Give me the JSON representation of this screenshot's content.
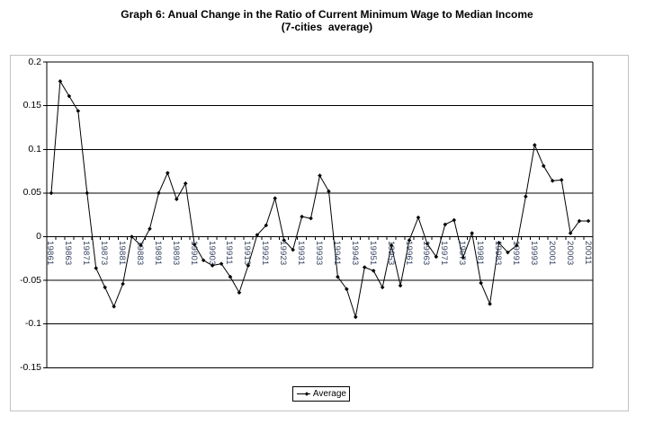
{
  "colors": {
    "line": "#000000",
    "marker": "#000000",
    "grid": "#000000",
    "axis_text": "#000000",
    "x_label_text": "#33415f",
    "frame": "#c2c2c2"
  },
  "legend": {
    "position": "bottom-center"
  },
  "chart_data": {
    "type": "line",
    "title": "Graph 6: Anual Change in the Ratio of Current Minimum Wage to Median Income",
    "subtitle": "(7-cities  average)",
    "x": [
      "19861",
      "19862",
      "19863",
      "19864",
      "19871",
      "19872",
      "19873",
      "19874",
      "19881",
      "19882",
      "19883",
      "19884",
      "19891",
      "19892",
      "19893",
      "19894",
      "19901",
      "19902",
      "19903",
      "19904",
      "19911",
      "19912",
      "19913",
      "19914",
      "19921",
      "19922",
      "19923",
      "19924",
      "19931",
      "19932",
      "19933",
      "19934",
      "19941",
      "19942",
      "19943",
      "19944",
      "19951",
      "19952",
      "19953",
      "19954",
      "19961",
      "19962",
      "19963",
      "19964",
      "19971",
      "19972",
      "19973",
      "19974",
      "19981",
      "19982",
      "19983",
      "19984",
      "19991",
      "19992",
      "19993",
      "19994",
      "20001",
      "20002",
      "20003",
      "20004",
      "20011"
    ],
    "x_tick_labels": [
      "19861",
      "19863",
      "19871",
      "19873",
      "19881",
      "19883",
      "19891",
      "19893",
      "19901",
      "19903",
      "19911",
      "19913",
      "19921",
      "19923",
      "19931",
      "19933",
      "19941",
      "19943",
      "19951",
      "19953",
      "19961",
      "19963",
      "19971",
      "19973",
      "19981",
      "19983",
      "19991",
      "19993",
      "20001",
      "20003",
      "20011"
    ],
    "x_tick_step": 2,
    "series": [
      {
        "name": "Average",
        "values": [
          0.05,
          0.178,
          0.161,
          0.144,
          0.05,
          -0.036,
          -0.058,
          -0.08,
          -0.054,
          0.0,
          -0.01,
          0.009,
          0.05,
          0.073,
          0.043,
          0.061,
          -0.009,
          -0.027,
          -0.033,
          -0.031,
          -0.046,
          -0.064,
          -0.033,
          0.002,
          0.013,
          0.044,
          -0.004,
          -0.015,
          0.023,
          0.021,
          0.07,
          0.052,
          -0.046,
          -0.06,
          -0.092,
          -0.035,
          -0.039,
          -0.058,
          -0.01,
          -0.056,
          -0.004,
          0.022,
          -0.008,
          -0.023,
          0.014,
          0.019,
          -0.024,
          0.004,
          -0.053,
          -0.077,
          -0.007,
          -0.018,
          -0.01,
          0.046,
          0.105,
          0.081,
          0.064,
          0.065,
          0.004,
          0.018,
          0.018
        ]
      }
    ],
    "y_tick_labels": [
      "0.2",
      "0.15",
      "0.1",
      "0.05",
      "0",
      "-0.05",
      "-0.1",
      "-0.15"
    ],
    "ylim": [
      -0.15,
      0.2
    ],
    "grid": true,
    "marker": "diamond",
    "legend_position": "bottom-center"
  }
}
